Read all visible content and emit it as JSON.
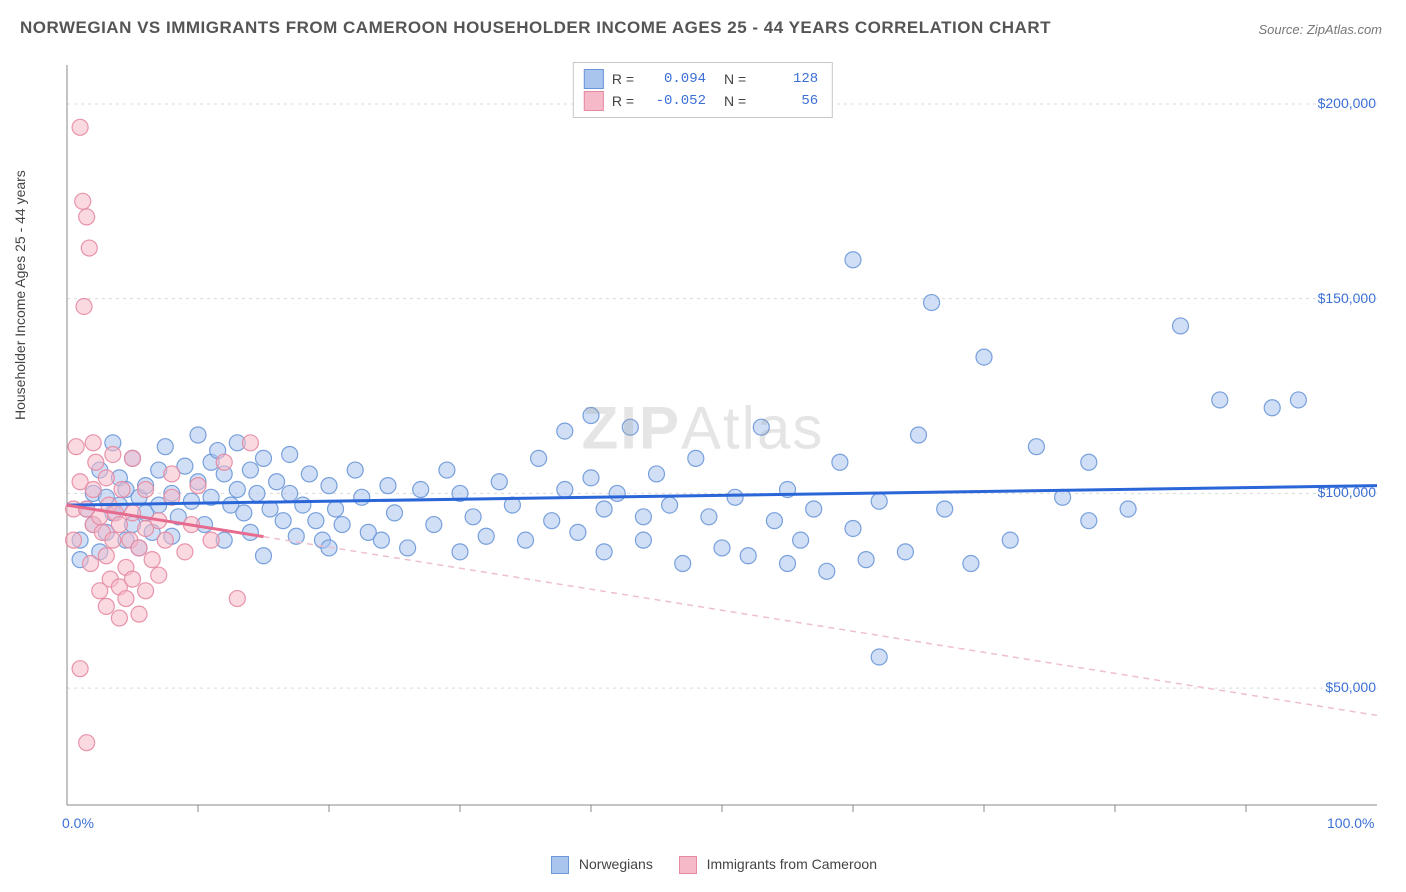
{
  "title": "NORWEGIAN VS IMMIGRANTS FROM CAMEROON HOUSEHOLDER INCOME AGES 25 - 44 YEARS CORRELATION CHART",
  "source": "Source: ZipAtlas.com",
  "ylabel": "Householder Income Ages 25 - 44 years",
  "watermark": "ZIPAtlas",
  "chart": {
    "type": "scatter",
    "xlim": [
      0,
      100
    ],
    "ylim": [
      20000,
      210000
    ],
    "x_tick_start_label": "0.0%",
    "x_tick_end_label": "100.0%",
    "x_minor_ticks": [
      10,
      20,
      30,
      40,
      50,
      60,
      70,
      80,
      90
    ],
    "y_gridline_values": [
      50000,
      100000,
      150000,
      200000
    ],
    "y_gridline_labels": [
      "$50,000",
      "$100,000",
      "$150,000",
      "$200,000"
    ],
    "grid_color": "#d9d9d9",
    "axis_color": "#888",
    "background": "#ffffff",
    "marker_radius": 8,
    "marker_opacity": 0.55,
    "marker_stroke_opacity": 0.9
  },
  "series": [
    {
      "key": "norwegians",
      "label": "Norwegians",
      "color_fill": "#a9c5ee",
      "color_stroke": "#6b97d8",
      "trend_color": "#2a66d8",
      "trend_dash_color": "#a9c5ee",
      "R": "0.094",
      "N": "128",
      "trend": {
        "x0": 0,
        "y0": 97000,
        "x1": 100,
        "y1": 102000
      },
      "points": [
        [
          1,
          88000
        ],
        [
          1,
          83000
        ],
        [
          1.5,
          96000
        ],
        [
          2,
          100000
        ],
        [
          2,
          92000
        ],
        [
          2.5,
          106000
        ],
        [
          2.5,
          85000
        ],
        [
          3,
          99000
        ],
        [
          3,
          90000
        ],
        [
          3.5,
          113000
        ],
        [
          3.5,
          95000
        ],
        [
          4,
          104000
        ],
        [
          4,
          97000
        ],
        [
          4.5,
          88000
        ],
        [
          4.5,
          101000
        ],
        [
          5,
          92000
        ],
        [
          5,
          109000
        ],
        [
          5.5,
          99000
        ],
        [
          5.5,
          86000
        ],
        [
          6,
          102000
        ],
        [
          6,
          95000
        ],
        [
          6.5,
          90000
        ],
        [
          7,
          106000
        ],
        [
          7,
          97000
        ],
        [
          7.5,
          112000
        ],
        [
          8,
          89000
        ],
        [
          8,
          100000
        ],
        [
          8.5,
          94000
        ],
        [
          9,
          107000
        ],
        [
          9.5,
          98000
        ],
        [
          10,
          115000
        ],
        [
          10,
          103000
        ],
        [
          10.5,
          92000
        ],
        [
          11,
          108000
        ],
        [
          11,
          99000
        ],
        [
          11.5,
          111000
        ],
        [
          12,
          105000
        ],
        [
          12,
          88000
        ],
        [
          12.5,
          97000
        ],
        [
          13,
          101000
        ],
        [
          13,
          113000
        ],
        [
          13.5,
          95000
        ],
        [
          14,
          106000
        ],
        [
          14,
          90000
        ],
        [
          14.5,
          100000
        ],
        [
          15,
          109000
        ],
        [
          15,
          84000
        ],
        [
          15.5,
          96000
        ],
        [
          16,
          103000
        ],
        [
          16.5,
          93000
        ],
        [
          17,
          110000
        ],
        [
          17,
          100000
        ],
        [
          17.5,
          89000
        ],
        [
          18,
          97000
        ],
        [
          18.5,
          105000
        ],
        [
          19,
          93000
        ],
        [
          19.5,
          88000
        ],
        [
          20,
          102000
        ],
        [
          20,
          86000
        ],
        [
          20.5,
          96000
        ],
        [
          21,
          92000
        ],
        [
          22,
          106000
        ],
        [
          22.5,
          99000
        ],
        [
          23,
          90000
        ],
        [
          24,
          88000
        ],
        [
          24.5,
          102000
        ],
        [
          25,
          95000
        ],
        [
          26,
          86000
        ],
        [
          27,
          101000
        ],
        [
          28,
          92000
        ],
        [
          29,
          106000
        ],
        [
          30,
          85000
        ],
        [
          30,
          100000
        ],
        [
          31,
          94000
        ],
        [
          32,
          89000
        ],
        [
          33,
          103000
        ],
        [
          34,
          97000
        ],
        [
          35,
          88000
        ],
        [
          36,
          109000
        ],
        [
          37,
          93000
        ],
        [
          38,
          116000
        ],
        [
          38,
          101000
        ],
        [
          39,
          90000
        ],
        [
          40,
          120000
        ],
        [
          40,
          104000
        ],
        [
          41,
          96000
        ],
        [
          41,
          85000
        ],
        [
          42,
          100000
        ],
        [
          43,
          117000
        ],
        [
          44,
          94000
        ],
        [
          44,
          88000
        ],
        [
          45,
          105000
        ],
        [
          46,
          97000
        ],
        [
          47,
          82000
        ],
        [
          48,
          109000
        ],
        [
          49,
          94000
        ],
        [
          50,
          86000
        ],
        [
          51,
          99000
        ],
        [
          52,
          84000
        ],
        [
          53,
          117000
        ],
        [
          54,
          93000
        ],
        [
          55,
          82000
        ],
        [
          55,
          101000
        ],
        [
          56,
          88000
        ],
        [
          57,
          96000
        ],
        [
          58,
          80000
        ],
        [
          59,
          108000
        ],
        [
          60,
          160000
        ],
        [
          60,
          91000
        ],
        [
          61,
          83000
        ],
        [
          62,
          58000
        ],
        [
          62,
          98000
        ],
        [
          64,
          85000
        ],
        [
          65,
          115000
        ],
        [
          66,
          149000
        ],
        [
          67,
          96000
        ],
        [
          69,
          82000
        ],
        [
          70,
          135000
        ],
        [
          72,
          88000
        ],
        [
          74,
          112000
        ],
        [
          76,
          99000
        ],
        [
          78,
          108000
        ],
        [
          78,
          93000
        ],
        [
          81,
          96000
        ],
        [
          85,
          143000
        ],
        [
          88,
          124000
        ],
        [
          92,
          122000
        ],
        [
          94,
          124000
        ]
      ]
    },
    {
      "key": "cameroon",
      "label": "Immigrants from Cameroon",
      "color_fill": "#f5b9c8",
      "color_stroke": "#e68aa2",
      "trend_color": "#e66b8f",
      "trend_dash_color": "#eec0cc",
      "R": "-0.052",
      "N": "56",
      "trend": {
        "x0": 0,
        "y0": 97000,
        "x1": 100,
        "y1": 43000
      },
      "solid_end_x": 15,
      "points": [
        [
          0.5,
          88000
        ],
        [
          0.5,
          96000
        ],
        [
          0.7,
          112000
        ],
        [
          1,
          55000
        ],
        [
          1,
          194000
        ],
        [
          1,
          103000
        ],
        [
          1.2,
          175000
        ],
        [
          1.3,
          148000
        ],
        [
          1.5,
          36000
        ],
        [
          1.5,
          171000
        ],
        [
          1.5,
          96000
        ],
        [
          1.7,
          163000
        ],
        [
          1.8,
          82000
        ],
        [
          2,
          113000
        ],
        [
          2,
          101000
        ],
        [
          2,
          92000
        ],
        [
          2.2,
          108000
        ],
        [
          2.5,
          75000
        ],
        [
          2.5,
          94000
        ],
        [
          2.7,
          90000
        ],
        [
          3,
          104000
        ],
        [
          3,
          84000
        ],
        [
          3,
          71000
        ],
        [
          3.2,
          97000
        ],
        [
          3.3,
          78000
        ],
        [
          3.5,
          110000
        ],
        [
          3.5,
          88000
        ],
        [
          3.7,
          95000
        ],
        [
          4,
          76000
        ],
        [
          4,
          68000
        ],
        [
          4,
          92000
        ],
        [
          4.2,
          101000
        ],
        [
          4.5,
          81000
        ],
        [
          4.5,
          73000
        ],
        [
          4.8,
          88000
        ],
        [
          5,
          109000
        ],
        [
          5,
          95000
        ],
        [
          5,
          78000
        ],
        [
          5.5,
          69000
        ],
        [
          5.5,
          86000
        ],
        [
          6,
          101000
        ],
        [
          6,
          91000
        ],
        [
          6,
          75000
        ],
        [
          6.5,
          83000
        ],
        [
          7,
          93000
        ],
        [
          7,
          79000
        ],
        [
          7.5,
          88000
        ],
        [
          8,
          99000
        ],
        [
          8,
          105000
        ],
        [
          9,
          85000
        ],
        [
          9.5,
          92000
        ],
        [
          10,
          102000
        ],
        [
          11,
          88000
        ],
        [
          12,
          108000
        ],
        [
          13,
          73000
        ],
        [
          14,
          113000
        ]
      ]
    }
  ],
  "bottom_legend": [
    {
      "key": "norwegians",
      "label": "Norwegians"
    },
    {
      "key": "cameroon",
      "label": "Immigrants from Cameroon"
    }
  ]
}
